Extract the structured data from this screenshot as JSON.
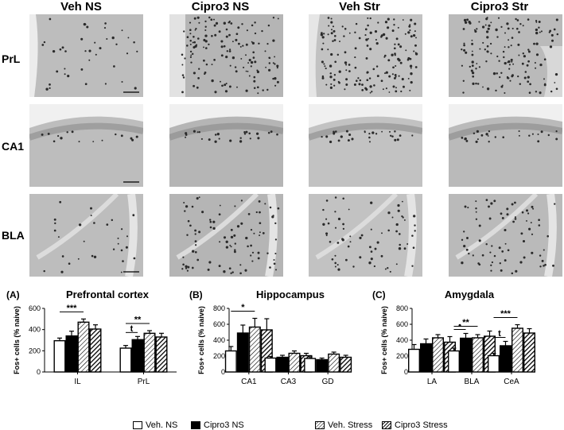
{
  "micrograph_grid": {
    "columns": [
      "Veh NS",
      "Cipro3 NS",
      "Veh Str",
      "Cipro3 Str"
    ],
    "rows": [
      "PrL",
      "CA1",
      "BLA"
    ]
  },
  "legend": {
    "items": [
      {
        "label": "Veh. NS",
        "fill": "white"
      },
      {
        "label": "Cipro3 NS",
        "fill": "black"
      },
      {
        "label": "Veh. Stress",
        "fill": "hatch-white"
      },
      {
        "label": "Cipro3 Stress",
        "fill": "hatch-black"
      }
    ]
  },
  "chart_data": [
    {
      "type": "bar",
      "panel_label": "(A)",
      "title": "Prefrontal cortex",
      "ylabel": "Fos+ cells (% naive)",
      "ylim": [
        0,
        600
      ],
      "yticks": [
        0,
        200,
        400,
        600
      ],
      "categories": [
        "IL",
        "PrL"
      ],
      "series": [
        {
          "name": "Veh. NS",
          "values": [
            295,
            225
          ],
          "errors": [
            25,
            25
          ]
        },
        {
          "name": "Cipro3 NS",
          "values": [
            340,
            305
          ],
          "errors": [
            45,
            30
          ]
        },
        {
          "name": "Veh. Stress",
          "values": [
            470,
            365
          ],
          "errors": [
            30,
            25
          ]
        },
        {
          "name": "Cipro3 Stress",
          "values": [
            405,
            330
          ],
          "errors": [
            40,
            35
          ]
        }
      ],
      "annotations": [
        {
          "text": "***",
          "from": [
            0,
            0
          ],
          "to": [
            0,
            2
          ]
        },
        {
          "text": "t",
          "from": [
            1,
            0
          ],
          "to": [
            1,
            1
          ]
        },
        {
          "text": "**",
          "from": [
            1,
            0
          ],
          "to": [
            1,
            2
          ]
        }
      ]
    },
    {
      "type": "bar",
      "panel_label": "(B)",
      "title": "Hippocampus",
      "ylabel": "Fos+ cells (% naive)",
      "ylim": [
        0,
        800
      ],
      "yticks": [
        0,
        200,
        400,
        600,
        800
      ],
      "categories": [
        "CA1",
        "CA3",
        "GD"
      ],
      "series": [
        {
          "name": "Veh. NS",
          "values": [
            265,
            175,
            170
          ],
          "errors": [
            55,
            20,
            20
          ]
        },
        {
          "name": "Cipro3 NS",
          "values": [
            490,
            185,
            155
          ],
          "errors": [
            100,
            25,
            20
          ]
        },
        {
          "name": "Veh. Stress",
          "values": [
            565,
            235,
            225
          ],
          "errors": [
            110,
            30,
            25
          ]
        },
        {
          "name": "Cipro3 Stress",
          "values": [
            530,
            205,
            185
          ],
          "errors": [
            140,
            30,
            25
          ]
        }
      ],
      "annotations": [
        {
          "text": "*",
          "from": [
            0,
            0
          ],
          "to": [
            0,
            2
          ]
        }
      ]
    },
    {
      "type": "bar",
      "panel_label": "(C)",
      "title": "Amygdala",
      "ylabel": "Fos+ cells (% naive)",
      "ylim": [
        0,
        800
      ],
      "yticks": [
        0,
        200,
        400,
        600,
        800
      ],
      "categories": [
        "LA",
        "BLA",
        "CeA"
      ],
      "series": [
        {
          "name": "Veh. NS",
          "values": [
            285,
            265,
            205
          ],
          "errors": [
            60,
            35,
            30
          ]
        },
        {
          "name": "Cipro3 NS",
          "values": [
            355,
            425,
            330
          ],
          "errors": [
            60,
            60,
            55
          ]
        },
        {
          "name": "Veh. Stress",
          "values": [
            430,
            430,
            550
          ],
          "errors": [
            40,
            40,
            45
          ]
        },
        {
          "name": "Cipro3 Stress",
          "values": [
            375,
            450,
            490
          ],
          "errors": [
            70,
            65,
            55
          ]
        }
      ],
      "annotations": [
        {
          "text": "•",
          "from": [
            1,
            0
          ],
          "to": [
            1,
            1
          ]
        },
        {
          "text": "**",
          "from": [
            1,
            0
          ],
          "to": [
            1,
            2
          ]
        },
        {
          "text": "t",
          "from": [
            2,
            0
          ],
          "to": [
            2,
            1
          ]
        },
        {
          "text": "***",
          "from": [
            2,
            0
          ],
          "to": [
            2,
            2
          ]
        }
      ]
    }
  ]
}
